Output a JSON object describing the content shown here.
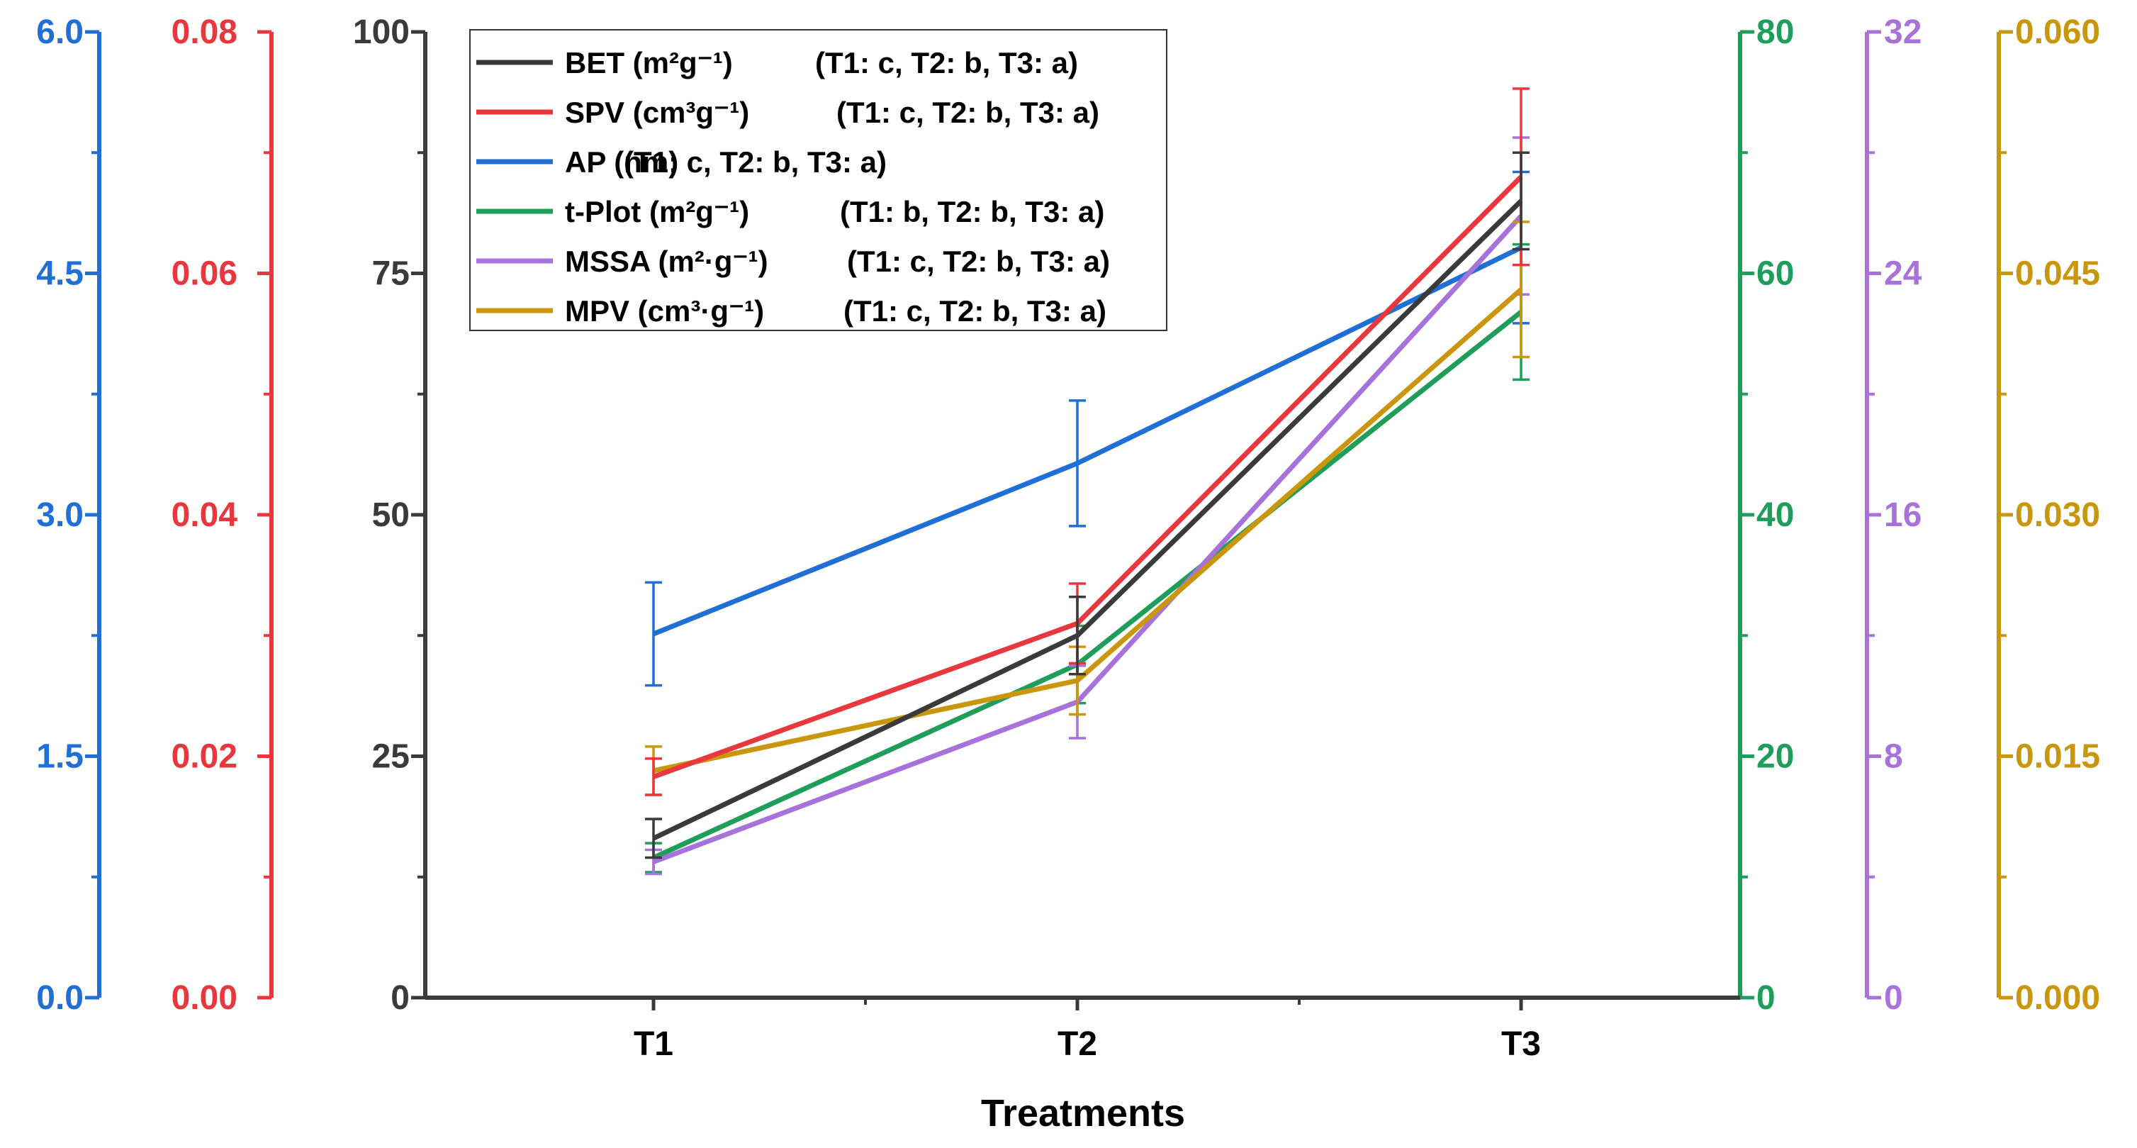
{
  "chart_data": {
    "type": "line",
    "title": "",
    "xlabel": "Treatments",
    "categories": [
      "T1",
      "T2",
      "T3"
    ],
    "axes": [
      {
        "id": "bet",
        "color": "#3a3a3a",
        "min": 0,
        "max": 100,
        "ticks": [
          "0",
          "25",
          "50",
          "75",
          "100"
        ]
      },
      {
        "id": "spv",
        "color": "#e8383d",
        "min": 0,
        "max": 0.08,
        "ticks": [
          "0.00",
          "0.02",
          "0.04",
          "0.06",
          "0.08"
        ]
      },
      {
        "id": "ap",
        "color": "#1f6fd6",
        "min": 0,
        "max": 6,
        "ticks": [
          "0.0",
          "1.5",
          "3.0",
          "4.5",
          "6.0"
        ]
      },
      {
        "id": "tplot",
        "color": "#1e9e5a",
        "min": 0,
        "max": 80,
        "ticks": [
          "0",
          "20",
          "40",
          "60",
          "80"
        ]
      },
      {
        "id": "mssa",
        "color": "#a772d9",
        "min": 0,
        "max": 32,
        "ticks": [
          "0",
          "8",
          "16",
          "24",
          "32"
        ]
      },
      {
        "id": "mpv",
        "color": "#c9960c",
        "min": 0,
        "max": 0.06,
        "ticks": [
          "0.000",
          "0.015",
          "0.030",
          "0.045",
          "0.060"
        ]
      }
    ],
    "series": [
      {
        "name": "BET (m²g⁻¹)",
        "sig": "(T1: c, T2: b, T3: a)",
        "axis": "bet",
        "color": "#3a3a3a",
        "values": [
          16.5,
          37.5,
          82.5
        ],
        "errors": [
          2.0,
          4.0,
          5.0
        ]
      },
      {
        "name": "SPV (cm³g⁻¹)",
        "sig": "(T1: c, T2: b, T3: a)",
        "axis": "spv",
        "color": "#e8383d",
        "values": [
          0.0183,
          0.031,
          0.068
        ],
        "errors": [
          0.0015,
          0.0033,
          0.0073
        ]
      },
      {
        "name": "AP (nm)",
        "sig": "(T1: c, T2: b, T3: a)",
        "axis": "ap",
        "color": "#1f6fd6",
        "values": [
          2.26,
          3.32,
          4.66
        ],
        "errors": [
          0.32,
          0.39,
          0.47
        ]
      },
      {
        "name": "t-Plot (m²g⁻¹)",
        "sig": "(T1: b, T2: b, T3: a)",
        "axis": "tplot",
        "color": "#1e9e5a",
        "values": [
          11.6,
          27.6,
          56.8
        ],
        "errors": [
          1.2,
          3.2,
          5.6
        ]
      },
      {
        "name": "MSSA (m²·g⁻¹)",
        "sig": "(T1: c, T2: b, T3: a)",
        "axis": "mssa",
        "color": "#a772d9",
        "values": [
          4.5,
          9.8,
          25.9
        ],
        "errors": [
          0.4,
          1.2,
          2.6
        ]
      },
      {
        "name": "MPV (cm³·g⁻¹)",
        "sig": "(T1: c, T2: b, T3: a)",
        "axis": "mpv",
        "color": "#c9960c",
        "values": [
          0.0141,
          0.0197,
          0.044
        ],
        "errors": [
          0.0015,
          0.0021,
          0.0042
        ]
      }
    ]
  }
}
